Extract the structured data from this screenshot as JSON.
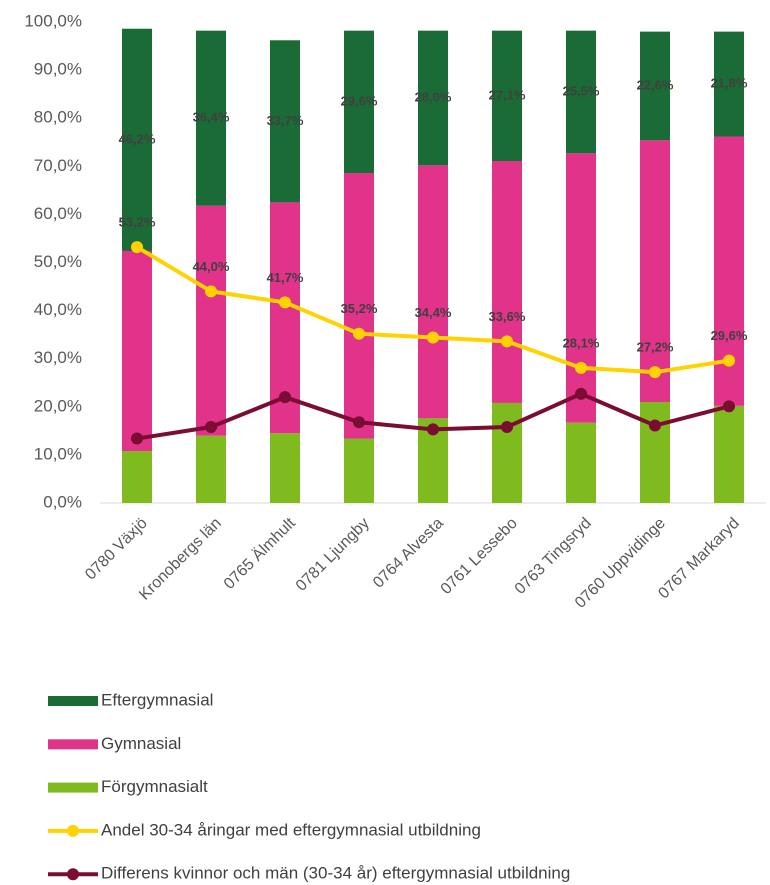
{
  "chart_data": {
    "type": "bar_line",
    "categories": [
      "0780 Växjö",
      "Kronobergs län",
      "0765 Älmhult",
      "0781 Ljungby",
      "0764 Alvesta",
      "0761 Lessebo",
      "0763 Tingsryd",
      "0760 Uppvidinge",
      "0767 Markaryd"
    ],
    "series": [
      {
        "name": "Förgymnasialt",
        "color": "#7fba1e",
        "kind": "stack",
        "values": [
          10.8,
          14.0,
          14.5,
          13.4,
          17.6,
          20.8,
          16.7,
          21.0,
          20.2
        ]
      },
      {
        "name": "Gymnasial",
        "color": "#e1338a",
        "kind": "stack",
        "values": [
          41.6,
          47.8,
          48.0,
          55.2,
          52.6,
          50.3,
          56.0,
          54.4,
          56.0
        ]
      },
      {
        "name": "Eftergymnasial",
        "color": "#1a6b35",
        "kind": "stack",
        "values": [
          46.2,
          36.4,
          33.7,
          29.6,
          28.0,
          27.1,
          25.5,
          22.6,
          21.8
        ],
        "value_labels": [
          "46,2%",
          "36,4%",
          "33,7%",
          "29,6%",
          "28,0%",
          "27,1%",
          "25,5%",
          "22,6%",
          "21,8%"
        ]
      },
      {
        "name": "Andel 30-34 åringar med eftergymnasial utbildning",
        "color": "#ffd200",
        "kind": "line",
        "values": [
          53.2,
          44.0,
          41.7,
          35.2,
          34.4,
          33.6,
          28.1,
          27.2,
          29.6
        ],
        "value_labels": [
          "53,2%",
          "44,0%",
          "41,7%",
          "35,2%",
          "34,4%",
          "33,6%",
          "28,1%",
          "27,2%",
          "29,6%"
        ]
      },
      {
        "name": "Differens kvinnor och män (30-34 år) eftergymnasial utbildning",
        "color": "#7b0c32",
        "kind": "line",
        "values": [
          13.4,
          15.8,
          22.0,
          16.8,
          15.3,
          15.8,
          22.7,
          16.1,
          20.1
        ]
      }
    ],
    "ylim": [
      0,
      100
    ],
    "yticks": [
      {
        "value": 0,
        "label": "0,0%"
      },
      {
        "value": 10,
        "label": "10,0%"
      },
      {
        "value": 20,
        "label": "20,0%"
      },
      {
        "value": 30,
        "label": "30,0%"
      },
      {
        "value": 40,
        "label": "40,0%"
      },
      {
        "value": 50,
        "label": "50,0%"
      },
      {
        "value": 60,
        "label": "60,0%"
      },
      {
        "value": 70,
        "label": "70,0%"
      },
      {
        "value": 80,
        "label": "80,0%"
      },
      {
        "value": 90,
        "label": "90,0%"
      },
      {
        "value": 100,
        "label": "100,0%"
      }
    ]
  }
}
